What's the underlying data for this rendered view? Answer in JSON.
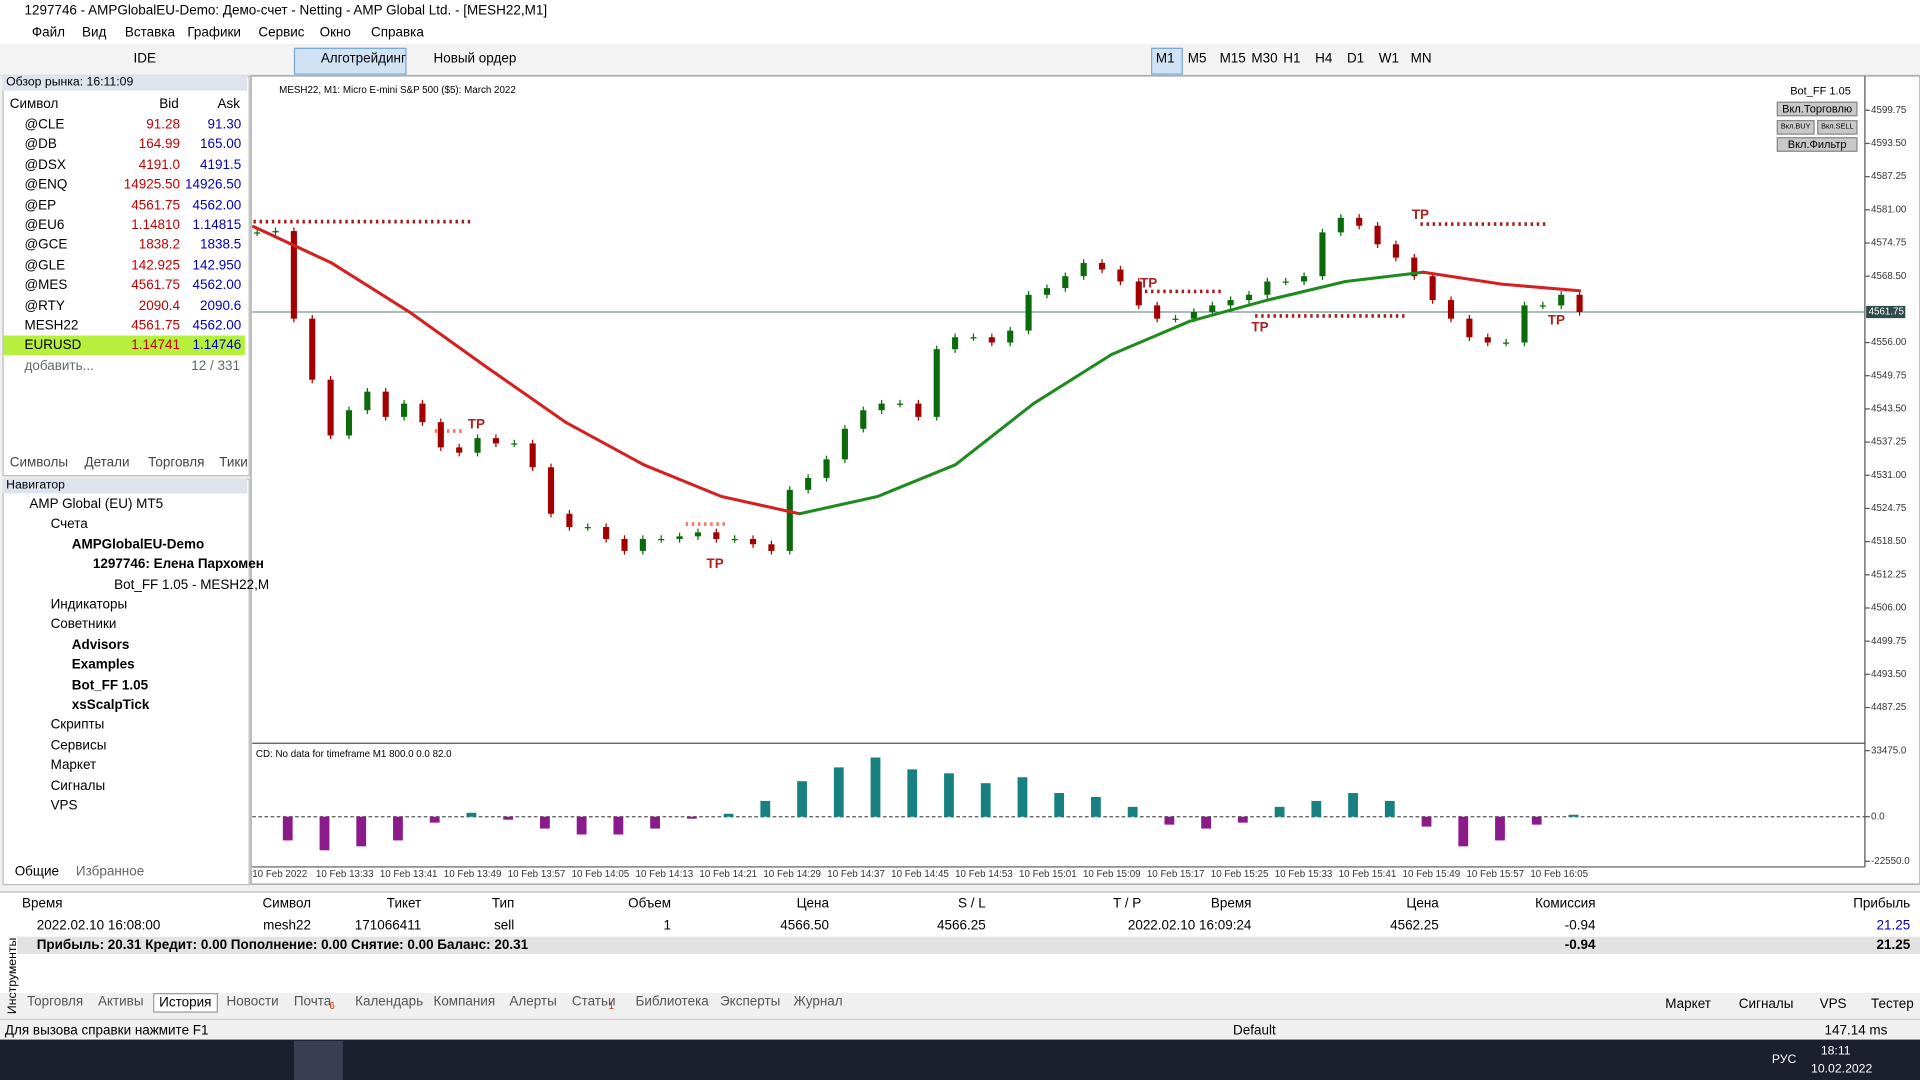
{
  "window": {
    "title": "1297746 - AMPGlobalEU-Demo: Демо-счет - Netting - AMP Global Ltd. - [MESH22,M1]",
    "menu": [
      "Файл",
      "Вид",
      "Вставка",
      "Графики",
      "Сервис",
      "Окно",
      "Справка"
    ],
    "toolbar": {
      "ide": "IDE",
      "algo": "Алготрейдинг",
      "order": "Новый ордер",
      "timeframes": [
        "M1",
        "M5",
        "M15",
        "M30",
        "H1",
        "H4",
        "D1",
        "W1",
        "MN"
      ]
    }
  },
  "market_watch": {
    "title": "Обзор рынка: 16:11:09",
    "columns": [
      "Символ",
      "Bid",
      "Ask"
    ],
    "rows": [
      [
        "@CLE",
        "91.28",
        "91.30"
      ],
      [
        "@DB",
        "164.99",
        "165.00"
      ],
      [
        "@DSX",
        "4191.0",
        "4191.5"
      ],
      [
        "@ENQ",
        "14925.50",
        "14926.50"
      ],
      [
        "@EP",
        "4561.75",
        "4562.00"
      ],
      [
        "@EU6",
        "1.14810",
        "1.14815"
      ],
      [
        "@GCE",
        "1838.2",
        "1838.5"
      ],
      [
        "@GLE",
        "142.925",
        "142.950"
      ],
      [
        "@MES",
        "4561.75",
        "4562.00"
      ],
      [
        "@RTY",
        "2090.4",
        "2090.6"
      ],
      [
        "MESH22",
        "4561.75",
        "4562.00"
      ],
      [
        "EURUSD",
        "1.14741",
        "1.14746"
      ]
    ],
    "add": "добавить...",
    "count": "12 / 331",
    "tabs": [
      "Символы",
      "Детали",
      "Торговля",
      "Тики"
    ]
  },
  "navigator": {
    "title": "Навигатор",
    "tree": [
      {
        "label": "AMP Global (EU) MT5",
        "children": [
          {
            "label": "Счета",
            "children": [
              {
                "label": "AMPGlobalEU-Demo",
                "children": [
                  {
                    "label": "1297746: Елена Пархомен",
                    "children": [
                      {
                        "label": "Bot_FF 1.05 - MESH22,M"
                      }
                    ]
                  }
                ]
              }
            ]
          },
          {
            "label": "Индикаторы"
          },
          {
            "label": "Советники",
            "children": [
              {
                "label": "Advisors"
              },
              {
                "label": "Examples"
              },
              {
                "label": "Bot_FF 1.05"
              },
              {
                "label": "xsScalpTick"
              }
            ]
          },
          {
            "label": "Скрипты"
          },
          {
            "label": "Сервисы"
          },
          {
            "label": "Маркет"
          },
          {
            "label": "Сигналы"
          },
          {
            "label": "VPS"
          }
        ]
      }
    ],
    "tabs": [
      "Общие",
      "Избранное"
    ]
  },
  "expert": {
    "name": "Bot_FF 1.05",
    "buttons": [
      "Вкл.Торговлю",
      "Вкл.BUY",
      "Вкл.SELL",
      "Вкл.Фильтр"
    ]
  },
  "chart_data": [
    {
      "type": "candlestick",
      "title": "MESH22, M1:  Micro E-mini S&P 500 ($5): March 2022",
      "values": [
        4576.75,
        4577.0,
        4560.5,
        4549.0,
        4538.5,
        4543.25,
        4546.75,
        4542.0,
        4544.5,
        4541.0,
        4536.25,
        4535.25,
        4538.0,
        4537.0,
        4537.0,
        4532.5,
        4523.75,
        4521.25,
        4521.25,
        4519.0,
        4516.75,
        4519.0,
        4519.0,
        4519.5,
        4520.25,
        4519.0,
        4519.0,
        4518.0,
        4516.75,
        4528.25,
        4530.5,
        4534.0,
        4539.75,
        4543.25,
        4544.5,
        4544.5,
        4542.0,
        4554.75,
        4557.0,
        4557.0,
        4556.0,
        4558.25,
        4565.0,
        4566.25,
        4568.5,
        4571.0,
        4569.75,
        4567.5,
        4563.0,
        4560.5,
        4560.5,
        4561.75,
        4563.0,
        4564.0,
        4565.0,
        4567.5,
        4567.5,
        4568.5,
        4576.75,
        4579.5,
        4578.0,
        4574.5,
        4572.0,
        4568.5,
        4564.0,
        4560.5,
        4557.0,
        4556.0,
        4556.0,
        4563.0,
        4563.0,
        4565.0,
        4561.75
      ],
      "up_color": "#0b6b0b",
      "down_color": "#a30000",
      "moving_average": {
        "values": [
          4577.85,
          4571.0,
          4561.75,
          4551.25,
          4541.0,
          4533.0,
          4527.0,
          4523.75,
          4527.0,
          4533.0,
          4544.5,
          4553.75,
          4560.0,
          4564.0,
          4567.5,
          4569.25,
          4567.0,
          4565.75
        ],
        "up_color": "#1f8a1f",
        "down_color": "#d42020"
      },
      "last_price": 4561.75,
      "ylim": [
        4480.75,
        4605.3
      ],
      "yticks": [
        4599.75,
        {
          "value": 4593.5,
          "label": "4593.50"
        },
        4587.25,
        {
          "value": 4581,
          "label": "4581.00"
        },
        4574.75,
        {
          "value": 4568.5,
          "label": "4568.50"
        },
        {
          "value": 4556,
          "label": "4556.00"
        },
        4549.75,
        {
          "value": 4543.5,
          "label": "4543.50"
        },
        4537.25,
        {
          "value": 4531,
          "label": "4531.00"
        },
        4524.75,
        {
          "value": 4518.5,
          "label": "4518.50"
        },
        4512.25,
        {
          "value": 4506,
          "label": "4506.00"
        },
        4499.75,
        {
          "value": 4493.5,
          "label": "4493.50"
        },
        4487.25
      ],
      "xticks": [
        "10 Feb 2022",
        "10 Feb 13:33",
        "10 Feb 13:41",
        "10 Feb 13:49",
        "10 Feb 13:57",
        "10 Feb 14:05",
        "10 Feb 14:13",
        "10 Feb 14:21",
        "10 Feb 14:29",
        "10 Feb 14:37",
        "10 Feb 14:45",
        "10 Feb 14:53",
        "10 Feb 15:01",
        "10 Feb 15:09",
        "10 Feb 15:17",
        "10 Feb 15:25",
        "10 Feb 15:33",
        "10 Feb 15:41",
        "10 Feb 15:49",
        "10 Feb 15:57",
        "10 Feb 16:05"
      ],
      "annotations": [
        "TP",
        "TP",
        "TP",
        "TP",
        "TP",
        "TP"
      ]
    },
    {
      "type": "bar",
      "title": "CD: No data for timeframe M1 800.0 0.0 82.0",
      "values": [
        -12000,
        -17000,
        -15000,
        -12000,
        -3000,
        2000,
        -1500,
        -6000,
        -9000,
        -9000,
        -6000,
        -1000,
        1500,
        8000,
        18000,
        25000,
        30000,
        24000,
        22000,
        17000,
        20000,
        12000,
        10000,
        5000,
        -4000,
        -6000,
        -3000,
        5000,
        8000,
        12000,
        8000,
        -5000,
        -15000,
        -12000,
        -4000,
        1000
      ],
      "up_color": "#178080",
      "down_color": "#8b1a8b",
      "ylim": [
        -24200,
        36600
      ],
      "yticks": [
        {
          "value": 33475,
          "label": "33475.0"
        },
        {
          "value": 0,
          "label": "0.0"
        },
        {
          "value": -22550,
          "label": "-22550.0"
        }
      ]
    }
  ],
  "toolbox": {
    "side_label": "Инструменты",
    "columns": [
      "Время",
      "Символ",
      "Тикет",
      "Тип",
      "Объем",
      "Цена",
      "S / L",
      "T / P",
      "Время",
      "Цена",
      "Комиссия",
      "Прибыль"
    ],
    "row": {
      "time": "2022.02.10 16:08:00",
      "symbol": "mesh22",
      "ticket": "171066411",
      "type": "sell",
      "volume": "1",
      "price": "4566.50",
      "sl": "4566.25",
      "close_time": "2022.02.10 16:09:24",
      "close_price": "4562.25",
      "commission": "-0.94",
      "profit": "21.25"
    },
    "summary": {
      "text": "Прибыль: 20.31  Кредит: 0.00  Пополнение: 0.00  Снятие: 0.00  Баланс: 20.31",
      "commission": "-0.94",
      "profit": "21.25"
    },
    "tabs": [
      {
        "label": "Торговля"
      },
      {
        "label": "Активы"
      },
      {
        "label": "История"
      },
      {
        "label": "Новости"
      },
      {
        "label": "Почта",
        "badge": "6"
      },
      {
        "label": "Календарь"
      },
      {
        "label": "Компания"
      },
      {
        "label": "Алерты"
      },
      {
        "label": "Статьи",
        "badge": "1"
      },
      {
        "label": "Библиотека"
      },
      {
        "label": "Эксперты"
      },
      {
        "label": "Журнал"
      }
    ],
    "right_tabs": [
      "Маркет",
      "Сигналы",
      "VPS",
      "Тестер"
    ]
  },
  "status": {
    "help": "Для вызова справки нажмите F1",
    "profile": "Default",
    "ping": "147.14 ms"
  },
  "taskbar": {
    "lang": "РУС",
    "time": "18:11",
    "date": "10.02.2022"
  }
}
